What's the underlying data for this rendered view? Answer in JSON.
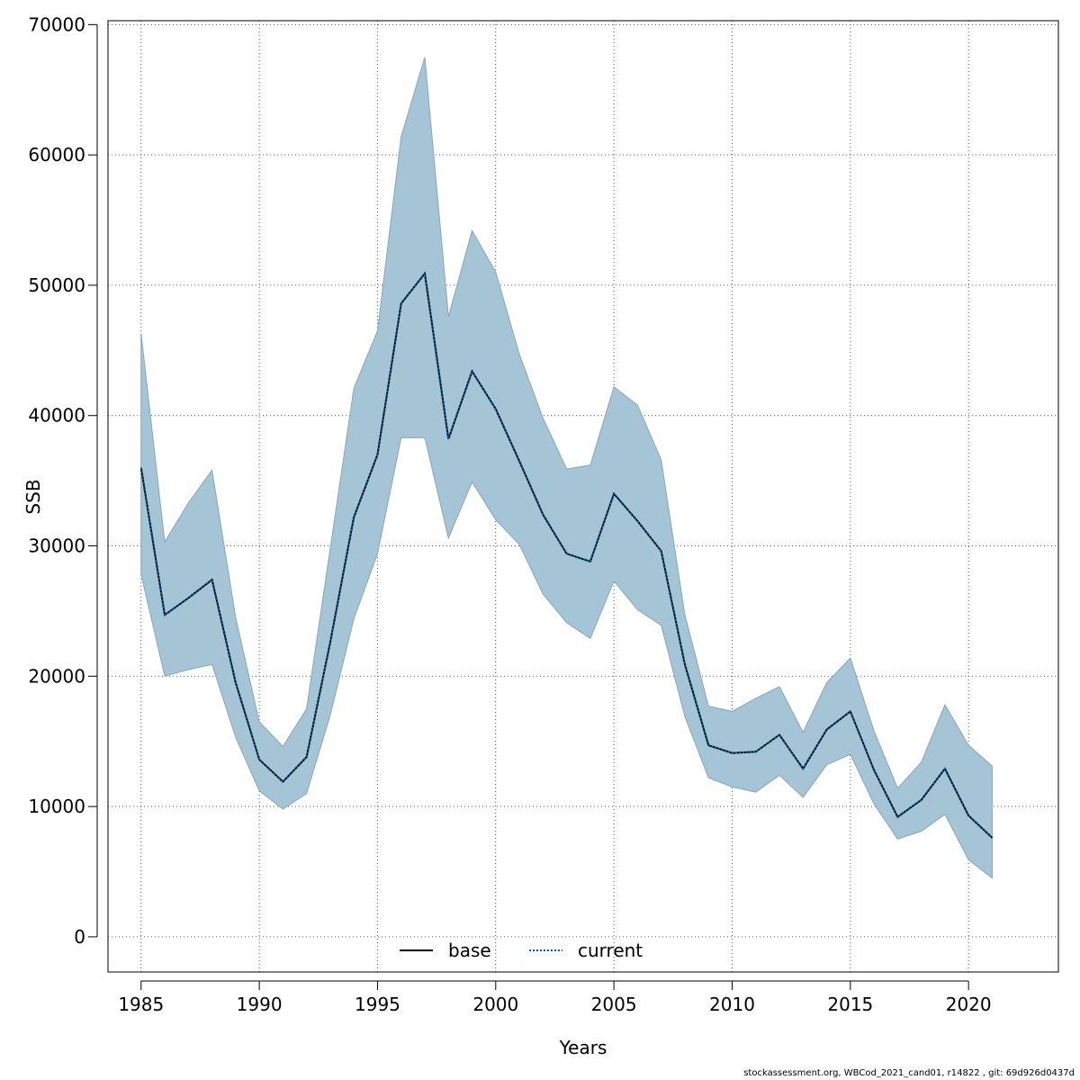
{
  "chart_data": {
    "type": "line",
    "title": "",
    "xlabel": "Years",
    "ylabel": "SSB",
    "xlim": [
      1983.6,
      2023.8
    ],
    "ylim": [
      -2700,
      70300
    ],
    "x_ticks": [
      1985,
      1990,
      1995,
      2000,
      2005,
      2010,
      2015,
      2020
    ],
    "y_ticks": [
      0,
      10000,
      20000,
      30000,
      40000,
      50000,
      60000,
      70000
    ],
    "grid": true,
    "legend_position": "bottom-center",
    "x": [
      1985,
      1986,
      1987,
      1988,
      1989,
      1990,
      1991,
      1992,
      1993,
      1994,
      1995,
      1996,
      1997,
      1998,
      1999,
      2000,
      2001,
      2002,
      2003,
      2004,
      2005,
      2006,
      2007,
      2008,
      2009,
      2010,
      2011,
      2012,
      2013,
      2014,
      2015,
      2016,
      2017,
      2018,
      2019,
      2020,
      2021
    ],
    "series": [
      {
        "name": "base",
        "style": "solid",
        "color": "#000000",
        "values": [
          36000,
          24700,
          26000,
          27400,
          19500,
          13600,
          11900,
          13800,
          22600,
          32200,
          37000,
          48600,
          50900,
          38200,
          43400,
          40500,
          36500,
          32400,
          29400,
          28800,
          34000,
          31900,
          29600,
          20900,
          14700,
          14100,
          14200,
          15500,
          12900,
          15900,
          17300,
          12800,
          9200,
          10500,
          12900,
          9300,
          7600
        ]
      },
      {
        "name": "current",
        "style": "dotted",
        "color": "#00629b",
        "values": [
          36000,
          24700,
          26000,
          27400,
          19500,
          13600,
          11900,
          13800,
          22600,
          32200,
          37000,
          48600,
          50900,
          38200,
          43400,
          40500,
          36500,
          32400,
          29400,
          28800,
          34000,
          31900,
          29600,
          20900,
          14700,
          14100,
          14200,
          15500,
          12900,
          15900,
          17300,
          12800,
          9200,
          10500,
          12900,
          9300,
          7600
        ]
      }
    ],
    "band": {
      "color": "#a5c4d5",
      "edge_color": "#8aa6b4",
      "upper": [
        46300,
        30300,
        33300,
        35800,
        24500,
        16500,
        14600,
        17500,
        29800,
        42100,
        46500,
        61400,
        67500,
        47600,
        54200,
        51000,
        44700,
        39800,
        35900,
        36200,
        42200,
        40800,
        36600,
        24700,
        17700,
        17300,
        18300,
        19200,
        15700,
        19500,
        21400,
        15800,
        11400,
        13400,
        17800,
        14700,
        13100
      ],
      "lower": [
        27800,
        20000,
        20500,
        20900,
        15300,
        11200,
        9800,
        11000,
        17000,
        24400,
        29400,
        38300,
        38300,
        30600,
        34900,
        32000,
        30100,
        26300,
        24100,
        22900,
        27300,
        25100,
        23900,
        16900,
        12200,
        11500,
        11100,
        12400,
        10700,
        13200,
        14000,
        10200,
        7500,
        8100,
        9400,
        5900,
        4500
      ]
    }
  },
  "legend": {
    "items": [
      {
        "label": "base",
        "style": "solid",
        "color": "#000000"
      },
      {
        "label": "current",
        "style": "dotted",
        "color": "#00629b"
      }
    ]
  },
  "footer": {
    "text": "stockassessment.org, WBCod_2021_cand01, r14822 , git: 69d926d0437d"
  }
}
